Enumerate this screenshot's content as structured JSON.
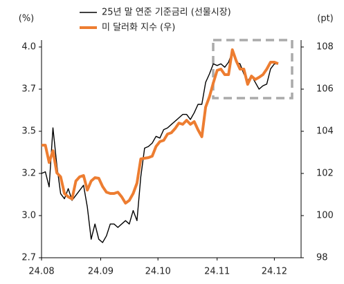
{
  "chart_data": {
    "type": "line",
    "y_unit": "(%)",
    "y2_unit": "(pt)",
    "x": [
      0,
      2,
      4,
      6,
      8,
      10,
      12,
      14,
      16,
      18,
      20,
      22,
      24,
      26,
      28,
      30,
      32,
      34,
      36,
      38,
      40,
      42,
      44,
      46,
      48,
      50,
      52,
      54,
      56,
      58,
      60,
      62,
      64,
      66,
      68,
      70,
      72,
      74,
      76,
      78,
      80,
      82,
      84,
      86,
      88,
      90,
      92,
      94,
      96,
      98,
      100,
      102,
      104,
      106,
      108,
      110,
      112,
      114,
      116,
      118,
      120,
      122,
      124
    ],
    "xlim": [
      0,
      136
    ],
    "xticks": [
      {
        "value": 0,
        "label": "24.08"
      },
      {
        "value": 31,
        "label": "24.09"
      },
      {
        "value": 61,
        "label": "24.10"
      },
      {
        "value": 92,
        "label": "24.11"
      },
      {
        "value": 122,
        "label": "24.12"
      }
    ],
    "ylim": [
      2.75,
      4.0
    ],
    "yticks": [
      {
        "value": 2.75,
        "label": "2.7"
      },
      {
        "value": 3.0,
        "label": "3.0"
      },
      {
        "value": 3.25,
        "label": "3.2"
      },
      {
        "value": 3.5,
        "label": "3.5"
      },
      {
        "value": 3.75,
        "label": "3.7"
      },
      {
        "value": 4.0,
        "label": "4.0"
      }
    ],
    "y2lim": [
      98,
      108
    ],
    "y2ticks": [
      98,
      100,
      102,
      104,
      106,
      108
    ],
    "legend": "top",
    "series": [
      {
        "name": "25년 말 연준 기준금리 (선물시장)",
        "color": "#000000",
        "width": 1.4,
        "values": [
          3.25,
          3.26,
          3.17,
          3.52,
          3.3,
          3.13,
          3.1,
          3.16,
          3.09,
          3.12,
          3.15,
          3.18,
          3.05,
          2.86,
          2.95,
          2.86,
          2.84,
          2.88,
          2.95,
          2.95,
          2.93,
          2.95,
          2.97,
          2.95,
          3.03,
          2.97,
          3.23,
          3.4,
          3.41,
          3.43,
          3.47,
          3.46,
          3.51,
          3.52,
          3.54,
          3.56,
          3.58,
          3.6,
          3.6,
          3.57,
          3.61,
          3.66,
          3.66,
          3.79,
          3.84,
          3.9,
          3.89,
          3.9,
          3.88,
          3.91,
          3.97,
          3.91,
          3.9,
          3.84,
          3.8,
          3.83,
          3.79,
          3.75,
          3.77,
          3.78,
          3.87,
          3.9,
          3.9
        ]
      },
      {
        "name": "미 달러화 지수 (우)",
        "color": "#ed7d31",
        "width": 4,
        "axis": "y2",
        "values": [
          103.34,
          103.34,
          102.52,
          103.08,
          102.03,
          101.84,
          101.05,
          100.89,
          100.79,
          101.64,
          101.84,
          101.9,
          101.21,
          101.64,
          101.8,
          101.77,
          101.38,
          101.11,
          101.05,
          101.05,
          101.11,
          100.89,
          100.59,
          100.72,
          101.05,
          101.54,
          102.69,
          102.72,
          102.75,
          102.82,
          103.28,
          103.51,
          103.57,
          103.87,
          103.93,
          104.13,
          104.39,
          104.33,
          104.52,
          104.33,
          104.46,
          104.07,
          103.74,
          105.15,
          105.64,
          106.3,
          106.89,
          106.95,
          106.69,
          106.69,
          107.87,
          107.34,
          106.95,
          106.95,
          106.23,
          106.62,
          106.46,
          106.56,
          106.69,
          106.95,
          107.28,
          107.28,
          107.21
        ]
      }
    ]
  }
}
